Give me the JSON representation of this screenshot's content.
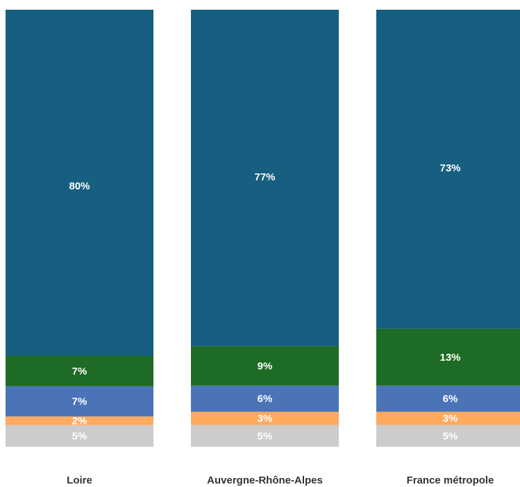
{
  "chart_data": {
    "type": "bar",
    "stacked": true,
    "normalized": true,
    "categories": [
      "Loire",
      "Auvergne-Rhône-Alpes",
      "France métropole"
    ],
    "series": [
      {
        "color": "#cccccc",
        "values": [
          5,
          5,
          5
        ],
        "labels": [
          "5%",
          "5%",
          "5%"
        ]
      },
      {
        "color": "#ffaa5e",
        "values": [
          2,
          3,
          3
        ],
        "labels": [
          "2%",
          "3%",
          "3%"
        ]
      },
      {
        "color": "#4a74b7",
        "values": [
          7,
          6,
          6
        ],
        "labels": [
          "7%",
          "6%",
          "6%"
        ]
      },
      {
        "color": "#1d6b24",
        "values": [
          7,
          9,
          13
        ],
        "labels": [
          "7%",
          "9%",
          "13%"
        ]
      },
      {
        "color": "#165f80",
        "values": [
          80,
          77,
          73
        ],
        "labels": [
          "80%",
          "77%",
          "73%"
        ]
      }
    ],
    "ylim": [
      0,
      100
    ]
  }
}
